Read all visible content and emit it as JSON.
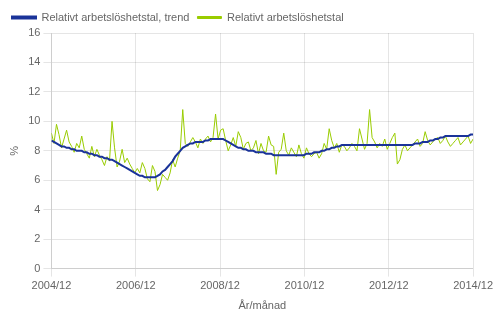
{
  "chart_data": {
    "type": "line",
    "x": [
      0,
      0.719,
      1.437,
      2.156,
      2.874,
      3.593,
      4.311,
      5.03,
      5.749,
      6.467,
      7.186,
      7.904,
      8.623,
      9.341,
      10.06,
      10.778,
      11.497,
      12.216,
      12.934,
      13.653,
      14.371,
      15.09,
      15.808,
      16.527,
      17.246,
      17.964,
      18.683,
      19.401,
      20.12,
      20.838,
      21.557,
      22.275,
      22.994,
      23.713,
      24.431,
      25.15,
      25.868,
      26.587,
      27.305,
      28.024,
      28.743,
      29.461,
      30.18,
      30.898,
      31.617,
      32.335,
      33.054,
      33.772,
      34.491,
      35.21,
      35.928,
      36.647,
      37.365,
      38.084,
      38.802,
      39.521,
      40.24,
      40.958,
      41.677,
      42.395,
      43.114,
      43.832,
      44.551,
      45.269,
      45.988,
      46.707,
      47.425,
      48.144,
      48.862,
      49.581,
      50.299,
      51.018,
      51.737,
      52.455,
      53.174,
      53.892,
      54.611,
      55.329,
      56.048,
      56.766,
      57.485,
      58.204,
      58.922,
      59.641,
      60.359,
      61.078,
      61.796,
      62.515,
      63.234,
      63.952,
      64.671,
      65.389,
      66.108,
      66.826,
      67.545,
      68.263,
      68.982,
      69.701,
      70.419,
      71.138,
      71.856,
      72.575,
      73.293,
      74.012,
      74.731,
      75.449,
      76.168,
      76.886,
      77.605,
      78.323,
      79.042,
      79.76,
      80.479,
      81.198,
      81.916,
      82.635,
      83.353,
      84.072,
      84.79,
      85.509,
      86.228,
      86.946,
      87.665,
      88.383,
      89.102,
      89.82,
      90.539,
      91.257,
      91.976,
      92.695,
      93.413,
      94.132,
      94.85,
      95.569,
      96.287,
      97.006,
      97.725,
      98.443,
      99.162,
      99.88,
      100.599,
      101.317,
      102.036,
      102.754,
      103.473,
      104.192,
      104.91,
      105.629,
      106.347,
      107.066,
      107.784,
      108.503,
      109.222,
      109.94,
      110.659,
      111.377,
      112.096,
      112.814,
      113.533,
      114.251,
      114.97,
      115.689,
      116.407,
      117.126,
      117.844,
      118.563,
      119.281,
      120
    ],
    "series": [
      {
        "name": "Relativt arbetslöshetstal",
        "color": "#99cc00",
        "values": [
          9.2,
          8.5,
          9.8,
          9.1,
          8.2,
          8.8,
          9.4,
          8.6,
          8.3,
          7.9,
          8.5,
          8.2,
          9.0,
          8.1,
          7.8,
          7.5,
          8.3,
          7.6,
          8.1,
          7.7,
          7.4,
          7.0,
          7.6,
          7.3,
          10.0,
          8.2,
          6.9,
          7.3,
          8.1,
          7.2,
          7.5,
          7.1,
          6.8,
          6.5,
          6.8,
          6.5,
          7.2,
          6.8,
          6.1,
          5.9,
          7.0,
          6.6,
          5.3,
          5.7,
          6.4,
          6.2,
          6.0,
          6.5,
          7.4,
          6.9,
          7.5,
          8.0,
          10.8,
          8.5,
          8.3,
          8.6,
          8.9,
          8.6,
          8.2,
          8.8,
          8.5,
          8.8,
          9.0,
          8.6,
          8.9,
          10.5,
          8.8,
          9.4,
          9.5,
          8.7,
          8.0,
          8.4,
          8.9,
          8.3,
          9.3,
          8.9,
          8.1,
          8.5,
          8.6,
          8.0,
          8.2,
          8.7,
          7.8,
          8.5,
          8.0,
          7.9,
          9.0,
          8.4,
          8.3,
          6.4,
          7.9,
          8.1,
          9.2,
          8.0,
          7.7,
          8.2,
          7.9,
          7.6,
          8.4,
          7.8,
          7.5,
          8.2,
          7.8,
          7.6,
          7.8,
          7.9,
          7.5,
          7.8,
          8.5,
          8.1,
          9.5,
          8.7,
          8.2,
          8.5,
          7.9,
          8.4,
          8.3,
          8.0,
          8.2,
          8.5,
          8.3,
          8.0,
          9.5,
          8.8,
          8.1,
          8.5,
          10.8,
          8.9,
          8.6,
          8.2,
          8.5,
          8.3,
          8.8,
          8.1,
          8.5,
          8.9,
          9.2,
          7.1,
          7.4,
          8.1,
          8.4,
          8.0,
          8.2,
          8.4,
          8.6,
          8.8,
          8.3,
          8.5,
          9.3,
          8.7,
          8.4,
          8.6,
          8.8,
          8.9,
          8.5,
          8.7,
          9.0,
          8.6,
          8.3,
          8.5,
          8.7,
          8.9,
          8.4,
          8.6,
          8.8,
          9.0,
          8.5,
          8.8
        ]
      },
      {
        "name": "Relativt arbetslöshetstal, trend",
        "color": "#1a3399",
        "values": [
          8.7,
          8.6,
          8.5,
          8.4,
          8.3,
          8.3,
          8.2,
          8.2,
          8.1,
          8.1,
          8.0,
          8.0,
          8.0,
          7.9,
          7.9,
          7.8,
          7.8,
          7.7,
          7.7,
          7.6,
          7.6,
          7.5,
          7.5,
          7.4,
          7.4,
          7.3,
          7.2,
          7.1,
          7.0,
          6.9,
          6.8,
          6.7,
          6.6,
          6.5,
          6.4,
          6.3,
          6.3,
          6.2,
          6.2,
          6.2,
          6.2,
          6.2,
          6.3,
          6.4,
          6.6,
          6.7,
          6.9,
          7.1,
          7.3,
          7.6,
          7.8,
          8.0,
          8.2,
          8.3,
          8.4,
          8.5,
          8.5,
          8.6,
          8.6,
          8.6,
          8.6,
          8.7,
          8.7,
          8.8,
          8.8,
          8.8,
          8.8,
          8.8,
          8.8,
          8.7,
          8.6,
          8.5,
          8.4,
          8.3,
          8.2,
          8.2,
          8.1,
          8.1,
          8.0,
          8.0,
          8.0,
          7.9,
          7.9,
          7.9,
          7.9,
          7.8,
          7.8,
          7.8,
          7.7,
          7.7,
          7.7,
          7.7,
          7.7,
          7.7,
          7.7,
          7.7,
          7.7,
          7.7,
          7.7,
          7.7,
          7.7,
          7.8,
          7.8,
          7.8,
          7.9,
          7.9,
          7.9,
          8.0,
          8.0,
          8.1,
          8.1,
          8.2,
          8.2,
          8.3,
          8.3,
          8.4,
          8.4,
          8.4,
          8.4,
          8.4,
          8.4,
          8.4,
          8.4,
          8.4,
          8.4,
          8.4,
          8.4,
          8.4,
          8.4,
          8.4,
          8.4,
          8.4,
          8.4,
          8.4,
          8.4,
          8.4,
          8.4,
          8.4,
          8.4,
          8.4,
          8.4,
          8.4,
          8.4,
          8.4,
          8.5,
          8.5,
          8.5,
          8.6,
          8.6,
          8.6,
          8.7,
          8.7,
          8.8,
          8.8,
          8.9,
          8.9,
          9.0,
          9.0,
          9.0,
          9.0,
          9.0,
          9.0,
          9.0,
          9.0,
          9.0,
          9.0,
          9.1,
          9.1
        ]
      }
    ],
    "xlabel": "År/månad",
    "ylabel": "%",
    "xlim": [
      0,
      120
    ],
    "xticks": [
      {
        "value": 0,
        "label": "2004/12"
      },
      {
        "value": 24,
        "label": "2006/12"
      },
      {
        "value": 48,
        "label": "2008/12"
      },
      {
        "value": 72,
        "label": "2010/12"
      },
      {
        "value": 96,
        "label": "2012/12"
      },
      {
        "value": 120,
        "label": "2014/12"
      }
    ],
    "ylim": [
      0,
      16
    ],
    "yticks": [
      0,
      2,
      4,
      6,
      8,
      10,
      12,
      14,
      16
    ],
    "grid": true,
    "legend": "top"
  }
}
